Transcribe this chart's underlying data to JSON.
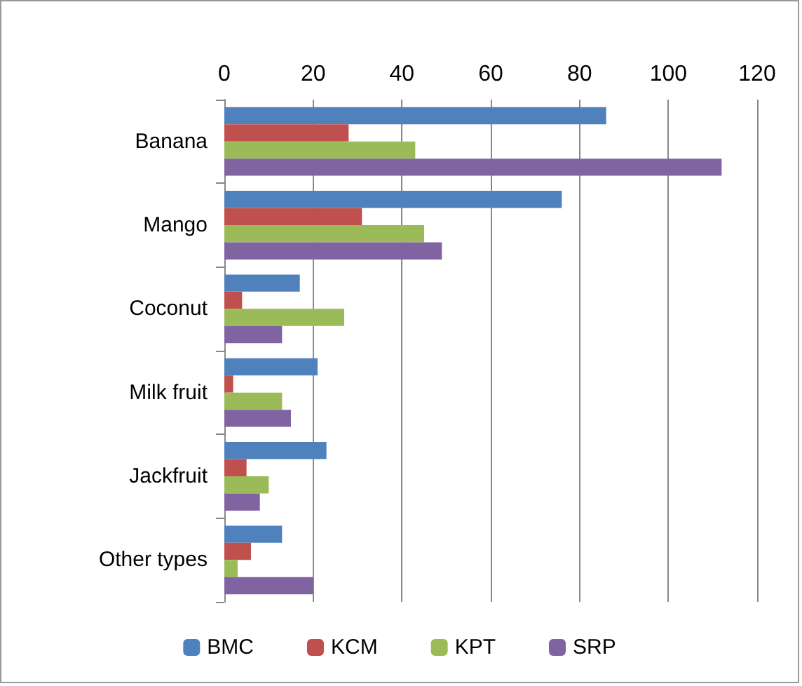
{
  "chart_data": {
    "type": "bar",
    "orientation": "horizontal",
    "categories": [
      "Banana",
      "Mango",
      "Coconut",
      "Milk fruit",
      "Jackfruit",
      "Other types"
    ],
    "series": [
      {
        "name": "BMC",
        "color": "#4f81bd",
        "values": [
          86,
          76,
          17,
          21,
          23,
          13
        ]
      },
      {
        "name": "KCM",
        "color": "#c0504d",
        "values": [
          28,
          31,
          4,
          2,
          5,
          6
        ]
      },
      {
        "name": "KPT",
        "color": "#9bbb59",
        "values": [
          43,
          45,
          27,
          13,
          10,
          3
        ]
      },
      {
        "name": "SRP",
        "color": "#8064a2",
        "values": [
          112,
          49,
          13,
          15,
          8,
          20
        ]
      }
    ],
    "xlim": [
      0,
      120
    ],
    "xticks": [
      0,
      20,
      40,
      60,
      80,
      100,
      120
    ],
    "grid": "x",
    "legend": "bottom"
  }
}
